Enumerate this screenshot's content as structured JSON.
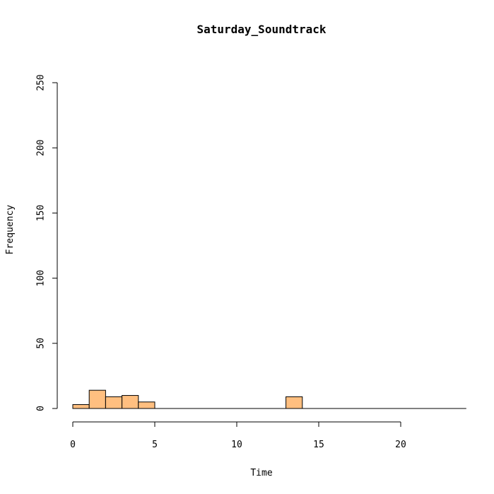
{
  "chart_data": {
    "type": "bar",
    "title": "Saturday_Soundtrack",
    "xlabel": "Time",
    "ylabel": "Frequency",
    "xlim": [
      0,
      24
    ],
    "ylim": [
      0,
      250
    ],
    "x_ticks": [
      0,
      5,
      10,
      15,
      20
    ],
    "y_ticks": [
      0,
      50,
      100,
      150,
      200,
      250
    ],
    "bin_width": 1,
    "bins": [
      {
        "start": 0,
        "end": 1,
        "count": 3
      },
      {
        "start": 1,
        "end": 2,
        "count": 14
      },
      {
        "start": 2,
        "end": 3,
        "count": 9
      },
      {
        "start": 3,
        "end": 4,
        "count": 10
      },
      {
        "start": 4,
        "end": 5,
        "count": 5
      },
      {
        "start": 13,
        "end": 14,
        "count": 9
      }
    ],
    "baseline_end": 24,
    "grid": false,
    "bar_color": "#FFBF80",
    "bar_stroke": "#000000"
  }
}
